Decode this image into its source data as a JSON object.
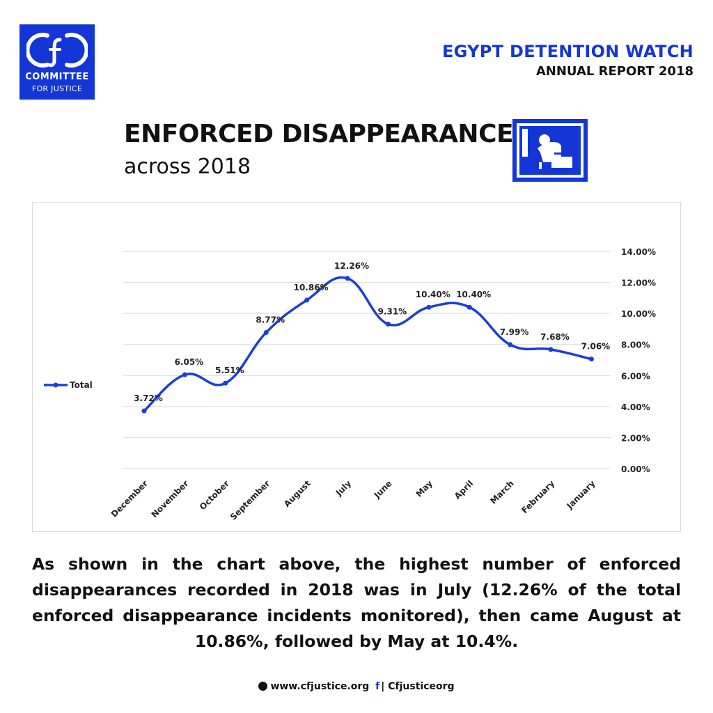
{
  "branding": {
    "logo_line1": "COMMITTEE",
    "logo_line2": "FOR JUSTICE",
    "report_title": "EGYPT DETENTION WATCH",
    "report_subtitle": "ANNUAL REPORT 2018"
  },
  "heading": {
    "title": "ENFORCED DISAPPEARANCE",
    "subtitle": "across 2018",
    "icon": "detainee-icon"
  },
  "chart_data": {
    "type": "line",
    "categories": [
      "December",
      "November",
      "October",
      "September",
      "August",
      "July",
      "June",
      "May",
      "April",
      "March",
      "February",
      "January"
    ],
    "series": [
      {
        "name": "Total",
        "values": [
          3.72,
          6.05,
          5.51,
          8.77,
          10.86,
          12.26,
          9.31,
          10.4,
          10.4,
          7.99,
          7.68,
          7.06
        ],
        "labels": [
          "3.72%",
          "6.05%",
          "5.51%",
          "8.77%",
          "10.86%",
          "12.26%",
          "9.31%",
          "10.40%",
          "10.40%",
          "7.99%",
          "7.68%",
          "7.06%"
        ],
        "color": "#1a3fd8"
      }
    ],
    "ylim": [
      0,
      14
    ],
    "y_ticks": [
      0,
      2,
      4,
      6,
      8,
      10,
      12,
      14
    ],
    "y_tick_labels": [
      "0.00%",
      "2.00%",
      "4.00%",
      "6.00%",
      "8.00%",
      "10.00%",
      "12.00%",
      "14.00%"
    ],
    "y_axis_side": "right",
    "grid": true,
    "legend_position": "left",
    "smooth": true
  },
  "description": "As shown in the chart above, the highest number of enforced disappearances recorded in 2018 was in July (12.26% of the total enforced disappearance incidents monitored), then came August at 10.86%, followed by May at 10.4%.",
  "footer": {
    "website": "www.cfjustice.org",
    "social_icons": "f",
    "handle": "| Cfjusticeorg"
  },
  "colors": {
    "brand_blue": "#1436d6",
    "line_blue": "#1a3fd8"
  }
}
